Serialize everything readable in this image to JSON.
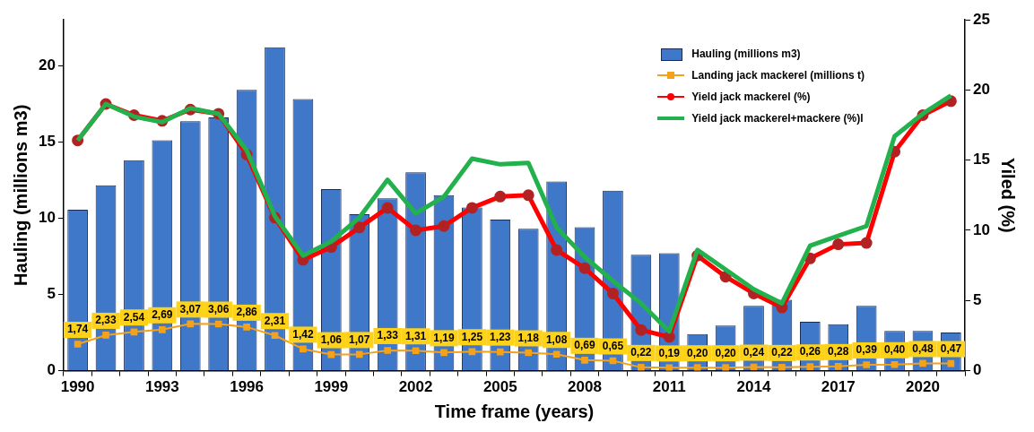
{
  "chart_data": {
    "type": "bar",
    "xlabel": "Time frame (years)",
    "ylabel": "Hauling (millions m3)",
    "y2label": "Yiled (%)",
    "categories": [
      "1990",
      null,
      null,
      "1993",
      null,
      null,
      "1996",
      null,
      null,
      "1999",
      null,
      null,
      "2002",
      null,
      null,
      "2005",
      null,
      null,
      "2008",
      null,
      null,
      "2011",
      null,
      null,
      "2014",
      null,
      null,
      "2017",
      null,
      null,
      "2020",
      null
    ],
    "ylim": [
      0,
      23
    ],
    "yticks": [
      0,
      5,
      10,
      15,
      20
    ],
    "y2lim": [
      0,
      25
    ],
    "y2ticks": [
      0,
      5,
      10,
      15,
      20,
      25
    ],
    "grid": false,
    "legend": "top right",
    "series": [
      {
        "name": "Hauling (millions m3)",
        "color": "#3f78c8",
        "values": [
          10.55,
          12.15,
          13.8,
          15.1,
          16.35,
          16.6,
          18.4,
          21.2,
          17.8,
          11.9,
          10.25,
          11.3,
          13.0,
          11.5,
          10.7,
          9.9,
          9.3,
          12.4,
          9.4,
          11.8,
          7.6,
          7.7,
          2.4,
          2.95,
          4.25,
          4.65,
          3.2,
          3.05,
          4.25,
          2.6,
          2.6,
          2.5
        ]
      },
      {
        "name": "Landing jack mackerel (millions t)",
        "type": "line",
        "color": "#f5a21b",
        "marker": "square",
        "values": [
          1.74,
          2.33,
          2.54,
          2.69,
          3.07,
          3.06,
          2.86,
          2.31,
          1.42,
          1.06,
          1.07,
          1.33,
          1.31,
          1.19,
          1.25,
          1.23,
          1.18,
          1.08,
          0.69,
          0.65,
          0.22,
          0.19,
          0.2,
          0.2,
          0.24,
          0.22,
          0.26,
          0.28,
          0.39,
          0.4,
          0.48,
          0.47
        ],
        "value_labels": [
          "1,74",
          "2,33",
          "2,54",
          "2,69",
          "3,07",
          "3,06",
          "2,86",
          "2,31",
          "1,42",
          "1,06",
          "1,07",
          "1,33",
          "1,31",
          "1,19",
          "1,25",
          "1,23",
          "1,18",
          "1,08",
          "0,69",
          "0,65",
          "0,22",
          "0,19",
          "0,20",
          "0,20",
          "0,24",
          "0,22",
          "0,26",
          "0,28",
          "0,39",
          "0,40",
          "0,48",
          "0,47"
        ]
      },
      {
        "name": "Yield jack mackerel (%)",
        "type": "line",
        "axis": "y2",
        "color": "#ff0000",
        "marker": "circle",
        "values": [
          16.4,
          19.0,
          18.2,
          17.8,
          18.6,
          18.3,
          15.4,
          10.9,
          7.9,
          8.8,
          10.2,
          11.6,
          10.0,
          10.3,
          11.6,
          12.4,
          12.5,
          8.6,
          7.3,
          5.5,
          2.9,
          2.4,
          8.2,
          6.7,
          5.5,
          4.5,
          8.0,
          9.0,
          9.1,
          15.6,
          18.2,
          19.2
        ]
      },
      {
        "name": "Yield jack mackerel+mackere (%)l",
        "type": "line",
        "axis": "y2",
        "color": "#22b14c",
        "marker": "none",
        "values": [
          16.4,
          19.0,
          18.1,
          17.7,
          18.7,
          18.3,
          15.7,
          11.0,
          8.2,
          9.2,
          10.9,
          13.6,
          11.2,
          12.4,
          15.1,
          14.7,
          14.8,
          10.2,
          8.1,
          6.4,
          4.8,
          2.8,
          8.6,
          7.2,
          5.8,
          4.8,
          8.9,
          9.6,
          10.3,
          16.7,
          18.3,
          19.6
        ]
      }
    ]
  }
}
